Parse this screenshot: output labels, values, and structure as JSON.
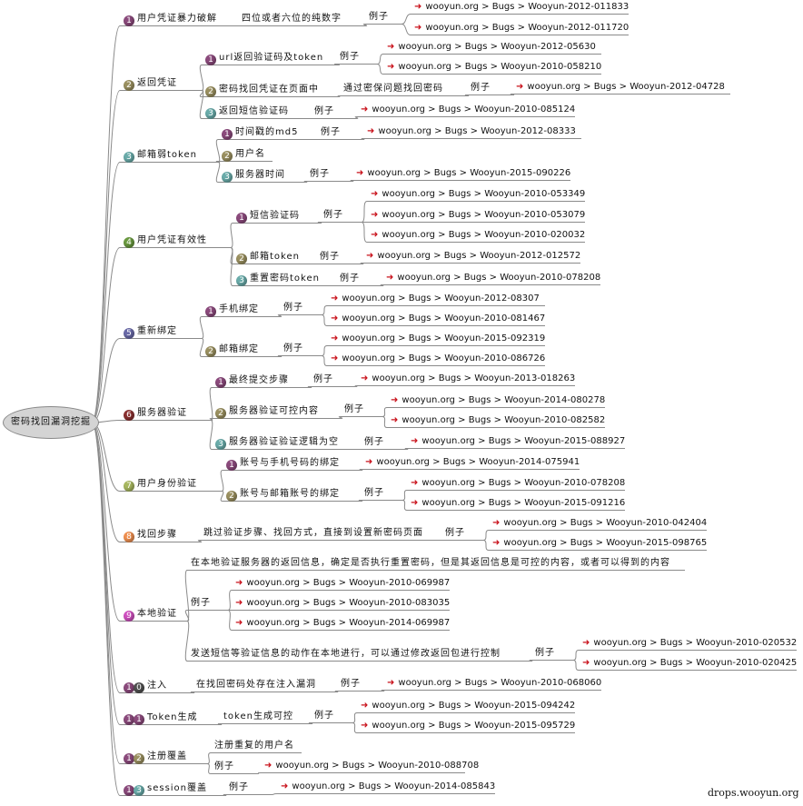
{
  "root": "密码找回漏洞挖掘",
  "footer": "drops.wooyun.org",
  "badge_colors": {
    "1": "#8b4a7c",
    "2": "#9a9060",
    "3": "#6aacaa",
    "4": "#6a9a40",
    "5": "#6a6aa8",
    "6": "#8a3030",
    "7": "#a8b860",
    "8": "#f09050",
    "9": "#d050c0",
    "0": "#505050"
  },
  "b": [
    {
      "num": "1",
      "label": "用户凭证暴力破解",
      "c": [
        {
          "label": "四位或者六位的纯数字",
          "ex": "例子",
          "links": [
            "wooyun.org > Bugs > Wooyun-2012-011833",
            "wooyun.org > Bugs > Wooyun-2012-011720"
          ]
        }
      ]
    },
    {
      "num": "2",
      "label": "返回凭证",
      "c": [
        {
          "num": "1",
          "label": "url返回验证码及token",
          "ex": "例子",
          "links": [
            "wooyun.org > Bugs > Wooyun-2012-05630",
            "wooyun.org > Bugs > Wooyun-2010-058210"
          ]
        },
        {
          "num": "2",
          "label": "密码找回凭证在页面中",
          "sub": "通过密保问题找回密码",
          "ex": "例子",
          "links": [
            "wooyun.org > Bugs > Wooyun-2012-04728"
          ]
        },
        {
          "num": "3",
          "label": "返回短信验证码",
          "ex": "例子",
          "links": [
            "wooyun.org > Bugs > Wooyun-2010-085124"
          ]
        }
      ]
    },
    {
      "num": "3",
      "label": "邮箱弱token",
      "c": [
        {
          "num": "1",
          "label": "时间戳的md5",
          "ex": "例子",
          "links": [
            "wooyun.org > Bugs > Wooyun-2012-08333"
          ]
        },
        {
          "num": "2",
          "label": "用户名"
        },
        {
          "num": "3",
          "label": "服务器时间",
          "ex": "例子",
          "links": [
            "wooyun.org > Bugs > Wooyun-2015-090226"
          ]
        }
      ]
    },
    {
      "num": "4",
      "label": "用户凭证有效性",
      "c": [
        {
          "num": "1",
          "label": "短信验证码",
          "ex": "例子",
          "links": [
            "wooyun.org > Bugs > Wooyun-2010-053349",
            "wooyun.org > Bugs > Wooyun-2010-053079",
            "wooyun.org > Bugs > Wooyun-2010-020032"
          ]
        },
        {
          "num": "2",
          "label": "邮箱token",
          "ex": "例子",
          "links": [
            "wooyun.org > Bugs > Wooyun-2012-012572"
          ]
        },
        {
          "num": "3",
          "label": "重置密码token",
          "ex": "例子",
          "links": [
            "wooyun.org > Bugs > Wooyun-2010-078208"
          ]
        }
      ]
    },
    {
      "num": "5",
      "label": "重新绑定",
      "c": [
        {
          "num": "1",
          "label": "手机绑定",
          "ex": "例子",
          "links": [
            "wooyun.org > Bugs > Wooyun-2012-08307",
            "wooyun.org > Bugs > Wooyun-2010-081467"
          ]
        },
        {
          "num": "2",
          "label": "邮箱绑定",
          "ex": "例子",
          "links": [
            "wooyun.org > Bugs > Wooyun-2015-092319",
            "wooyun.org > Bugs > Wooyun-2010-086726"
          ]
        }
      ]
    },
    {
      "num": "6",
      "label": "服务器验证",
      "c": [
        {
          "num": "1",
          "label": "最终提交步骤",
          "ex": "例子",
          "links": [
            "wooyun.org > Bugs > Wooyun-2013-018263"
          ]
        },
        {
          "num": "2",
          "label": "服务器验证可控内容",
          "ex": "例子",
          "links": [
            "wooyun.org > Bugs > Wooyun-2014-080278",
            "wooyun.org > Bugs > Wooyun-2010-082582"
          ]
        },
        {
          "num": "3",
          "label": "服务器验证验证逻辑为空",
          "ex": "例子",
          "links": [
            "wooyun.org > Bugs > Wooyun-2015-088927"
          ]
        }
      ]
    },
    {
      "num": "7",
      "label": "用户身份验证",
      "c": [
        {
          "num": "1",
          "label": "账号与手机号码的绑定",
          "links": [
            "wooyun.org > Bugs > Wooyun-2014-075941"
          ]
        },
        {
          "num": "2",
          "label": "账号与邮箱账号的绑定",
          "ex": "例子",
          "links": [
            "wooyun.org > Bugs > Wooyun-2010-078208",
            "wooyun.org > Bugs > Wooyun-2015-091216"
          ]
        }
      ]
    },
    {
      "num": "8",
      "label": "找回步骤",
      "c": [
        {
          "label": "跳过验证步骤、找回方式，直接到设置新密码页面",
          "ex": "例子",
          "links": [
            "wooyun.org > Bugs > Wooyun-2010-042404",
            "wooyun.org > Bugs > Wooyun-2015-098765"
          ]
        }
      ]
    },
    {
      "num": "9",
      "label": "本地验证",
      "c": [
        {
          "label": "在本地验证服务器的返回信息，确定是否执行重置密码，但是其返回信息是可控的内容，或者可以得到的内容"
        },
        {
          "label": "例子",
          "links": [
            "wooyun.org > Bugs > Wooyun-2010-069987",
            "wooyun.org > Bugs > Wooyun-2010-083035",
            "wooyun.org > Bugs > Wooyun-2014-069987"
          ]
        },
        {
          "label": "发送短信等验证信息的动作在本地进行，可以通过修改返回包进行控制",
          "ex": "例子",
          "links": [
            "wooyun.org > Bugs > Wooyun-2010-020532",
            "wooyun.org > Bugs > Wooyun-2010-020425"
          ]
        }
      ]
    },
    {
      "num": "10",
      "label": "注入",
      "c": [
        {
          "label": "在找回密码处存在注入漏洞",
          "ex": "例子",
          "links": [
            "wooyun.org > Bugs > Wooyun-2010-068060"
          ]
        }
      ]
    },
    {
      "num": "11",
      "label": "Token生成",
      "c": [
        {
          "label": "token生成可控",
          "ex": "例子",
          "links": [
            "wooyun.org > Bugs > Wooyun-2015-094242",
            "wooyun.org > Bugs > Wooyun-2015-095729"
          ]
        }
      ]
    },
    {
      "num": "12",
      "label": "注册覆盖",
      "c": [
        {
          "label": "注册重复的用户名"
        },
        {
          "label": "例子",
          "links": [
            "wooyun.org > Bugs > Wooyun-2010-088708"
          ]
        }
      ]
    },
    {
      "num": "13",
      "label": "session覆盖",
      "c": [
        {
          "label": "例子",
          "links": [
            "wooyun.org > Bugs > Wooyun-2014-085843"
          ]
        }
      ]
    }
  ]
}
